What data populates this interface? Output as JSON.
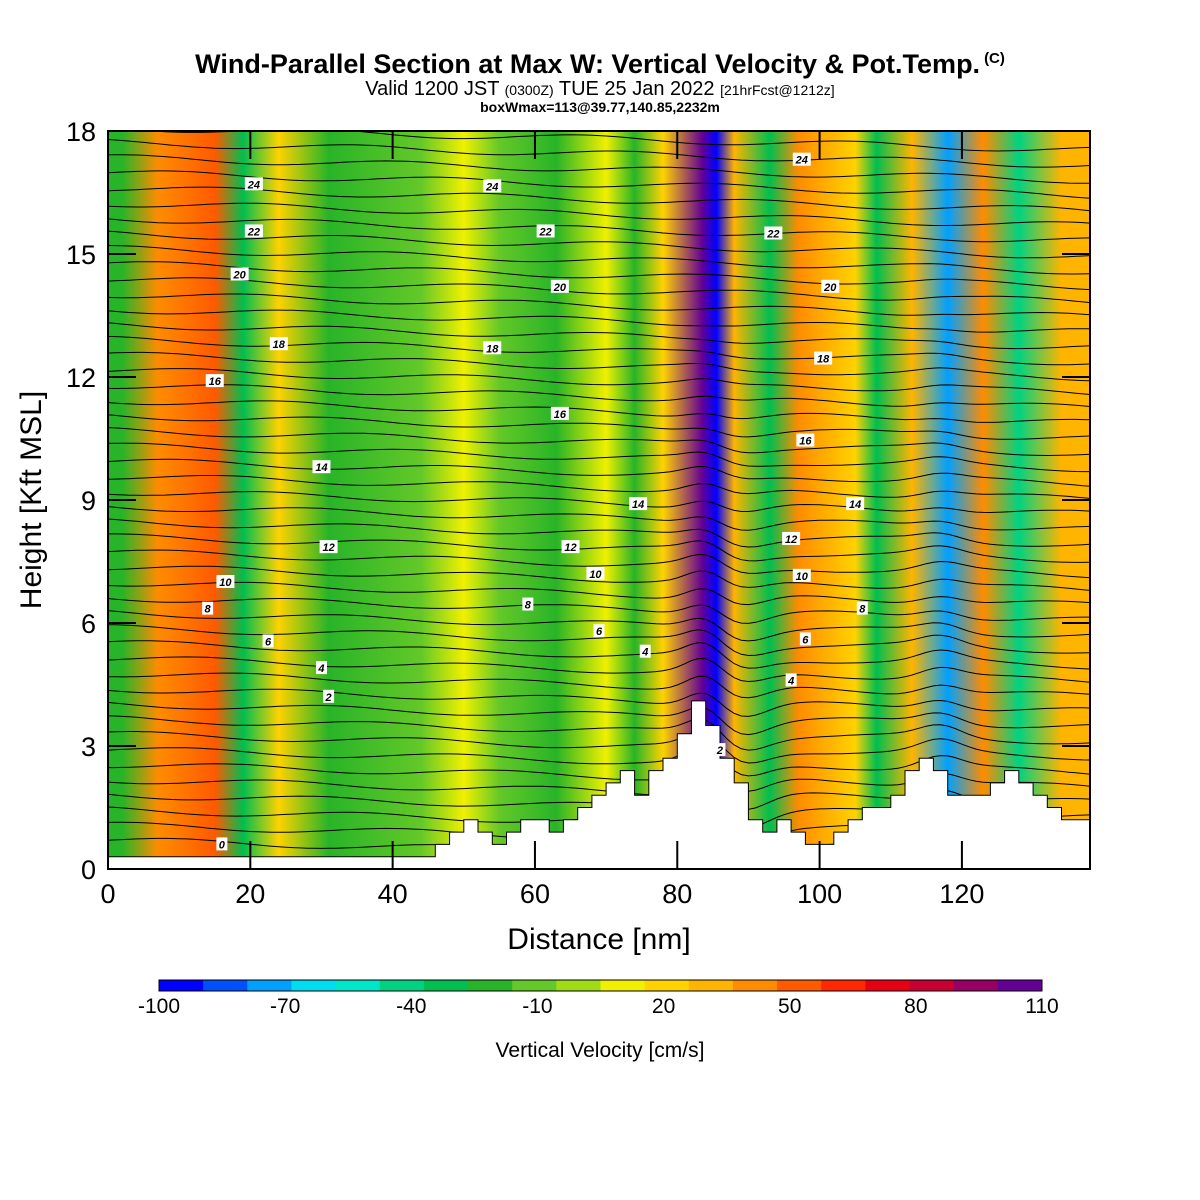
{
  "title": {
    "main": "Wind-Parallel Section at Max W: Vertical Velocity & Pot.Temp.",
    "copyright": "(C)",
    "line2_a": "Valid 1200 JST",
    "line2_b": "(0300Z)",
    "line2_c": "TUE 25 Jan 2022",
    "line2_d": "[21hrFcst@1212z]",
    "line3": "boxWmax=113@39.77,140.85,2232m"
  },
  "chart_data": {
    "type": "heatmap",
    "xlabel": "Distance [nm]",
    "ylabel": "Height [Kft MSL]",
    "xlim": [
      0,
      138
    ],
    "ylim": [
      0,
      18
    ],
    "xticks": [
      0,
      20,
      40,
      60,
      80,
      100,
      120
    ],
    "yticks": [
      0,
      3,
      6,
      9,
      12,
      15,
      18
    ],
    "colorbar": {
      "label": "Vertical Velocity [cm/s]",
      "tick_labels": [
        "-100",
        "-70",
        "-40",
        "-10",
        "20",
        "50",
        "80",
        "110"
      ],
      "colors": [
        "#0000ff",
        "#0050ff",
        "#00a0ff",
        "#00dcf0",
        "#00e6c8",
        "#00d282",
        "#00be50",
        "#28b428",
        "#64c828",
        "#a0dc14",
        "#f0f000",
        "#ffd200",
        "#ffb400",
        "#ff8c00",
        "#ff5a00",
        "#ff2800",
        "#e60014",
        "#c80032",
        "#960064",
        "#640096"
      ],
      "bounds": [
        -100,
        110
      ]
    },
    "vertical_velocity_columns": [
      {
        "x": 2,
        "w": -18
      },
      {
        "x": 7,
        "w": 40
      },
      {
        "x": 15,
        "w": 55
      },
      {
        "x": 19,
        "w": -28
      },
      {
        "x": 24,
        "w": 18
      },
      {
        "x": 31,
        "w": -22
      },
      {
        "x": 44,
        "w": -12
      },
      {
        "x": 50,
        "w": 14
      },
      {
        "x": 55,
        "w": -12
      },
      {
        "x": 63,
        "w": -18
      },
      {
        "x": 70,
        "w": 14
      },
      {
        "x": 74,
        "w": -25
      },
      {
        "x": 78,
        "w": 25
      },
      {
        "x": 83.5,
        "w": 110
      },
      {
        "x": 85.5,
        "w": -95
      },
      {
        "x": 88,
        "w": 30
      },
      {
        "x": 93,
        "w": -30
      },
      {
        "x": 97,
        "w": 40
      },
      {
        "x": 105,
        "w": 25
      },
      {
        "x": 108,
        "w": -30
      },
      {
        "x": 113,
        "w": 35
      },
      {
        "x": 118,
        "w": -72
      },
      {
        "x": 123,
        "w": 42
      },
      {
        "x": 128,
        "w": -42
      },
      {
        "x": 134,
        "w": 30
      }
    ],
    "theta_contour_labels": [
      {
        "text": "24",
        "x": 20.5,
        "y": 16.7
      },
      {
        "text": "24",
        "x": 54,
        "y": 16.65
      },
      {
        "text": "24",
        "x": 97.5,
        "y": 17.3
      },
      {
        "text": "22",
        "x": 20.5,
        "y": 15.55
      },
      {
        "text": "22",
        "x": 61.5,
        "y": 15.55
      },
      {
        "text": "22",
        "x": 93.5,
        "y": 15.5
      },
      {
        "text": "20",
        "x": 18.5,
        "y": 14.5
      },
      {
        "text": "20",
        "x": 63.5,
        "y": 14.2
      },
      {
        "text": "20",
        "x": 101.5,
        "y": 14.2
      },
      {
        "text": "18",
        "x": 24,
        "y": 12.8
      },
      {
        "text": "18",
        "x": 54,
        "y": 12.7
      },
      {
        "text": "18",
        "x": 100.5,
        "y": 12.45
      },
      {
        "text": "16",
        "x": 15,
        "y": 11.9
      },
      {
        "text": "16",
        "x": 63.5,
        "y": 11.1
      },
      {
        "text": "16",
        "x": 98,
        "y": 10.45
      },
      {
        "text": "14",
        "x": 30,
        "y": 9.8
      },
      {
        "text": "14",
        "x": 74.5,
        "y": 8.9
      },
      {
        "text": "14",
        "x": 105,
        "y": 8.9
      },
      {
        "text": "12",
        "x": 31,
        "y": 7.85
      },
      {
        "text": "12",
        "x": 65,
        "y": 7.85
      },
      {
        "text": "12",
        "x": 96,
        "y": 8.05
      },
      {
        "text": "10",
        "x": 16.5,
        "y": 7.0
      },
      {
        "text": "10",
        "x": 68.5,
        "y": 7.2
      },
      {
        "text": "10",
        "x": 97.5,
        "y": 7.15
      },
      {
        "text": "8",
        "x": 14,
        "y": 6.35
      },
      {
        "text": "8",
        "x": 59,
        "y": 6.45
      },
      {
        "text": "8",
        "x": 106,
        "y": 6.35
      },
      {
        "text": "6",
        "x": 22.5,
        "y": 5.55
      },
      {
        "text": "6",
        "x": 69,
        "y": 5.8
      },
      {
        "text": "6",
        "x": 98,
        "y": 5.6
      },
      {
        "text": "4",
        "x": 30,
        "y": 4.9
      },
      {
        "text": "4",
        "x": 75.5,
        "y": 5.3
      },
      {
        "text": "4",
        "x": 96,
        "y": 4.6
      },
      {
        "text": "2",
        "x": 31,
        "y": 4.2
      },
      {
        "text": "2",
        "x": 86,
        "y": 2.9
      },
      {
        "text": "0",
        "x": 16,
        "y": 0.6
      }
    ],
    "terrain": [
      [
        0,
        0.3
      ],
      [
        46,
        0.3
      ],
      [
        46,
        0.6
      ],
      [
        48,
        0.6
      ],
      [
        48,
        0.9
      ],
      [
        50,
        0.9
      ],
      [
        50,
        1.2
      ],
      [
        52,
        1.2
      ],
      [
        52,
        0.9
      ],
      [
        54,
        0.9
      ],
      [
        54,
        0.6
      ],
      [
        56,
        0.6
      ],
      [
        56,
        0.9
      ],
      [
        58,
        0.9
      ],
      [
        58,
        1.2
      ],
      [
        62,
        1.2
      ],
      [
        62,
        0.9
      ],
      [
        64,
        0.9
      ],
      [
        64,
        1.2
      ],
      [
        66,
        1.2
      ],
      [
        66,
        1.5
      ],
      [
        68,
        1.5
      ],
      [
        68,
        1.8
      ],
      [
        70,
        1.8
      ],
      [
        70,
        2.1
      ],
      [
        72,
        2.1
      ],
      [
        72,
        2.4
      ],
      [
        74,
        2.4
      ],
      [
        74,
        1.8
      ],
      [
        76,
        1.8
      ],
      [
        76,
        2.4
      ],
      [
        78,
        2.4
      ],
      [
        78,
        2.7
      ],
      [
        80,
        2.7
      ],
      [
        80,
        3.3
      ],
      [
        82,
        3.3
      ],
      [
        82,
        4.1
      ],
      [
        84,
        4.1
      ],
      [
        84,
        3.5
      ],
      [
        86,
        3.5
      ],
      [
        86,
        2.7
      ],
      [
        88,
        2.7
      ],
      [
        88,
        2.1
      ],
      [
        90,
        2.1
      ],
      [
        90,
        1.2
      ],
      [
        92,
        1.2
      ],
      [
        92,
        0.9
      ],
      [
        94,
        0.9
      ],
      [
        94,
        1.2
      ],
      [
        96,
        1.2
      ],
      [
        96,
        0.9
      ],
      [
        98,
        0.9
      ],
      [
        98,
        0.6
      ],
      [
        102,
        0.6
      ],
      [
        102,
        0.9
      ],
      [
        104,
        0.9
      ],
      [
        104,
        1.2
      ],
      [
        106,
        1.2
      ],
      [
        106,
        1.5
      ],
      [
        110,
        1.5
      ],
      [
        110,
        1.8
      ],
      [
        112,
        1.8
      ],
      [
        112,
        2.4
      ],
      [
        114,
        2.4
      ],
      [
        114,
        2.7
      ],
      [
        116,
        2.7
      ],
      [
        116,
        2.4
      ],
      [
        118,
        2.4
      ],
      [
        118,
        1.8
      ],
      [
        124,
        1.8
      ],
      [
        124,
        2.1
      ],
      [
        126,
        2.1
      ],
      [
        126,
        2.4
      ],
      [
        128,
        2.4
      ],
      [
        128,
        2.1
      ],
      [
        130,
        2.1
      ],
      [
        130,
        1.8
      ],
      [
        132,
        1.8
      ],
      [
        132,
        1.5
      ],
      [
        134,
        1.5
      ],
      [
        134,
        1.2
      ],
      [
        138,
        1.2
      ]
    ]
  }
}
